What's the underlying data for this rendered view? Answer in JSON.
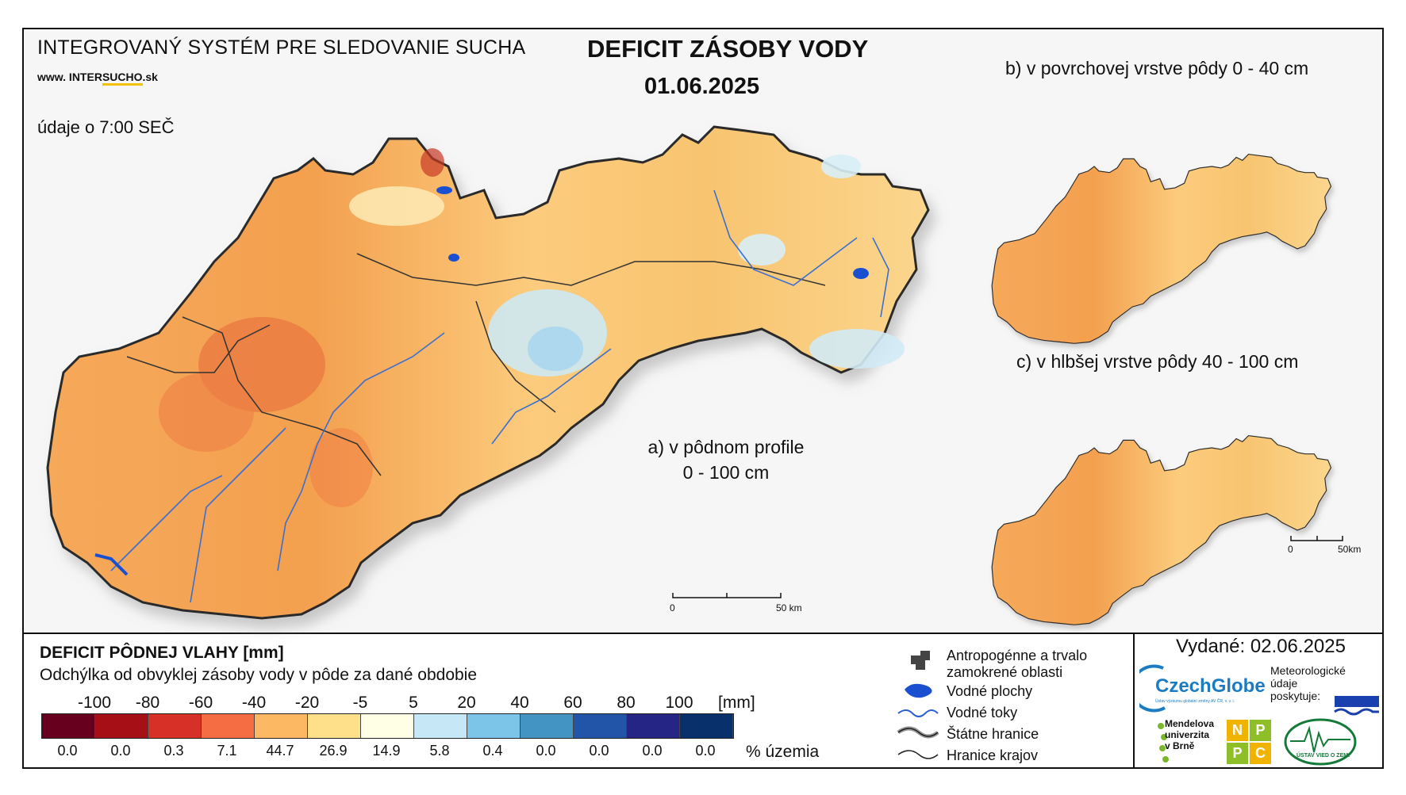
{
  "header": {
    "system": "INTEGROVANÝ SYSTÉM PRE SLEDOVANIE SUCHA",
    "www_prefix": "www. INTER",
    "www_u": "SUCHO",
    "www_suffix": ".sk",
    "time_note": "údaje o 7:00 SEČ",
    "title": "DEFICIT ZÁSOBY VODY",
    "date": "01.06.2025"
  },
  "maps": {
    "a_label_1": "a) v pôdnom profile",
    "a_label_2": "0 - 100 cm",
    "b_label": "b) v povrchovej vrstve pôdy 0 - 40 cm",
    "c_label": "c) v hlbšej vrstve pôdy 40 - 100 cm",
    "scale_main_0": "0",
    "scale_main_50": "50 km",
    "scale_small_0": "0",
    "scale_small_50": "50km"
  },
  "legend": {
    "title": "DEFICIT PÔDNEJ VLAHY [mm]",
    "subtitle": "Odchýlka od obvyklej zásoby vody v pôde za dané obdobie",
    "ticks": [
      "-100",
      "-80",
      "-60",
      "-40",
      "-20",
      "-5",
      "5",
      "20",
      "40",
      "60",
      "80",
      "100"
    ],
    "unit": "[mm]",
    "colors": [
      "#67001f",
      "#a50f15",
      "#d73027",
      "#f46d43",
      "#fdb863",
      "#fee08b",
      "#ffffe5",
      "#c6e7f5",
      "#7cc5e8",
      "#4393c3",
      "#2255a8",
      "#252585",
      "#08306b"
    ],
    "percent": [
      "0.0",
      "0.0",
      "0.3",
      "7.1",
      "44.7",
      "26.9",
      "14.9",
      "5.8",
      "0.4",
      "0.0",
      "0.0",
      "0.0",
      "0.0"
    ],
    "percent_label": "% územia"
  },
  "symbols": {
    "anthro_1": "Antropogénne a trvalo",
    "anthro_2": "zamokrené oblasti",
    "water": "Vodné plochy",
    "rivers": "Vodné toky",
    "state": "Štátne hranice",
    "regions": "Hranice krajov"
  },
  "info": {
    "issued": "Vydané: 02.06.2025",
    "czechglobe": "CzechGlobe",
    "czechglobe_small": "Ústav výzkumu globální změny AV ČR, v. v. i.",
    "meteo_1": "Meteorologické",
    "meteo_2": "údaje",
    "meteo_3": "poskytuje:",
    "mendel_1": "Mendelova",
    "mendel_2": "univerzita",
    "mendel_3": "v Brně",
    "nppc": [
      "N",
      "P",
      "P",
      "C"
    ],
    "uvz": "ÚSTAV VIED O ZEMI"
  }
}
